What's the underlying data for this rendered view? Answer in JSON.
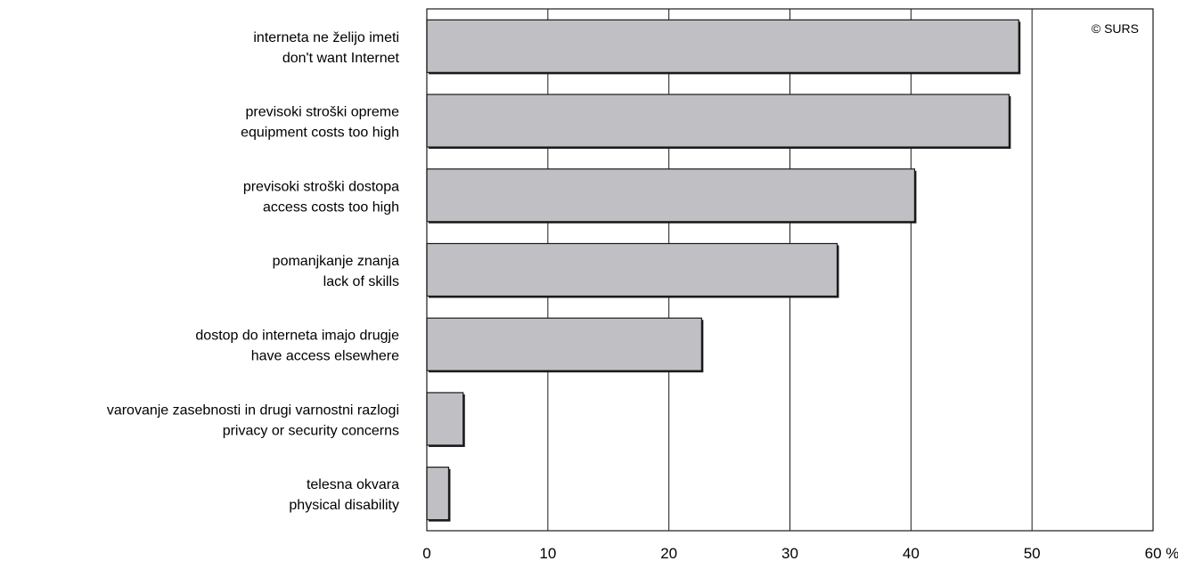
{
  "chart_data": {
    "type": "bar",
    "orientation": "horizontal",
    "categories": [
      [
        "interneta ne želijo imeti",
        "don't want Internet"
      ],
      [
        "previsoki stroški opreme",
        "equipment costs too high"
      ],
      [
        "previsoki stroški dostopa",
        "access costs too high"
      ],
      [
        "pomanjkanje znanja",
        "lack of skills"
      ],
      [
        "dostop do interneta imajo drugje",
        "have access elsewhere"
      ],
      [
        "varovanje zasebnosti in drugi varnostni razlogi",
        "privacy or security concerns"
      ],
      [
        "telesna okvara",
        "physical disability"
      ]
    ],
    "values": [
      48.9,
      48.1,
      40.3,
      33.9,
      22.7,
      3.0,
      1.8
    ],
    "xlim": [
      0,
      60
    ],
    "xticks": [
      "0",
      "10",
      "20",
      "30",
      "40",
      "50",
      "60 %"
    ],
    "grid": "vertical",
    "copyright": "© SURS",
    "colors": {
      "bar_fill": "#c0c0c4",
      "bar_stroke": "#1a1a1a",
      "axis": "#1a1a1a"
    }
  }
}
